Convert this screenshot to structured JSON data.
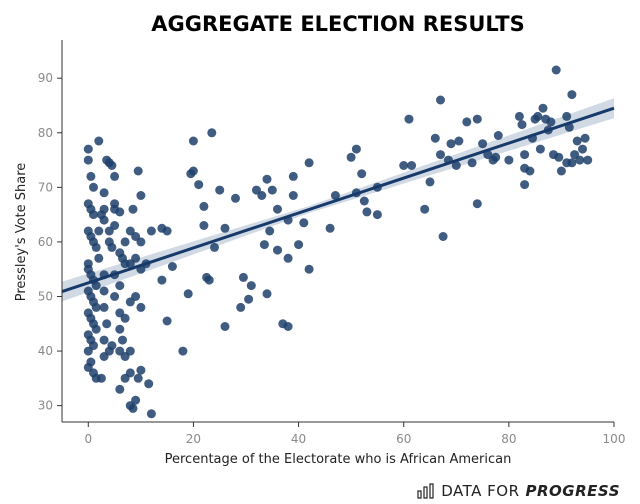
{
  "brand": {
    "part1": "DATA FOR",
    "part2": "PROGRESS",
    "icon": "bar-chart-icon"
  },
  "chart_data": {
    "type": "scatter",
    "title": "AGGREGATE ELECTION RESULTS",
    "xlabel": "Percentage of the Electorate who is African American",
    "ylabel": "Pressley's Vote Share",
    "xlim": [
      -5,
      100
    ],
    "ylim": [
      27,
      97
    ],
    "xticks": [
      0,
      20,
      40,
      60,
      80,
      100
    ],
    "yticks": [
      30,
      40,
      50,
      60,
      70,
      80,
      90
    ],
    "grid": false,
    "colors": {
      "points": "#1f3f6b",
      "trend": "#173a6b",
      "band": "#c9d3df"
    },
    "trend": {
      "slope": 0.32,
      "intercept": 52.5,
      "ci_half_width": 1.3
    },
    "points": [
      [
        0,
        77
      ],
      [
        0,
        75
      ],
      [
        0.5,
        72
      ],
      [
        1,
        70
      ],
      [
        2,
        78.5
      ],
      [
        0,
        67
      ],
      [
        0.5,
        66
      ],
      [
        1,
        65
      ],
      [
        0,
        62
      ],
      [
        0.5,
        61
      ],
      [
        1,
        60
      ],
      [
        2,
        62
      ],
      [
        2.5,
        65
      ],
      [
        3,
        64
      ],
      [
        3,
        66
      ],
      [
        1.5,
        59
      ],
      [
        2,
        57
      ],
      [
        0,
        56
      ],
      [
        0,
        55
      ],
      [
        0.5,
        54
      ],
      [
        1,
        53
      ],
      [
        1.5,
        52
      ],
      [
        0,
        51
      ],
      [
        0.5,
        50
      ],
      [
        1,
        49
      ],
      [
        1.5,
        48
      ],
      [
        0,
        47
      ],
      [
        0.5,
        46
      ],
      [
        1,
        45
      ],
      [
        1.5,
        44
      ],
      [
        0,
        43
      ],
      [
        0.5,
        42
      ],
      [
        1,
        41
      ],
      [
        0,
        40
      ],
      [
        0.5,
        38
      ],
      [
        0,
        37
      ],
      [
        1,
        36
      ],
      [
        1.5,
        35
      ],
      [
        2.5,
        35
      ],
      [
        3,
        54
      ],
      [
        3,
        51
      ],
      [
        3,
        48
      ],
      [
        3.5,
        45
      ],
      [
        3,
        42
      ],
      [
        4,
        40
      ],
      [
        4.5,
        41
      ],
      [
        3,
        39
      ],
      [
        3.5,
        75
      ],
      [
        4,
        74.5
      ],
      [
        4.5,
        74
      ],
      [
        3,
        69
      ],
      [
        5,
        72
      ],
      [
        4,
        62
      ],
      [
        4,
        60
      ],
      [
        4.5,
        59
      ],
      [
        5,
        67
      ],
      [
        5,
        66
      ],
      [
        5,
        63
      ],
      [
        6,
        65.5
      ],
      [
        6,
        58
      ],
      [
        6.5,
        57
      ],
      [
        7,
        56
      ],
      [
        7,
        60
      ],
      [
        5,
        54
      ],
      [
        6,
        52
      ],
      [
        5,
        50
      ],
      [
        6,
        47
      ],
      [
        7,
        46
      ],
      [
        6,
        44
      ],
      [
        6.5,
        42
      ],
      [
        6,
        40
      ],
      [
        7,
        39
      ],
      [
        6,
        33
      ],
      [
        7,
        35
      ],
      [
        8,
        36
      ],
      [
        8,
        40
      ],
      [
        8,
        30
      ],
      [
        8.5,
        29.5
      ],
      [
        9,
        31
      ],
      [
        9.5,
        35
      ],
      [
        10,
        36.5
      ],
      [
        8,
        49
      ],
      [
        9,
        50
      ],
      [
        10,
        48
      ],
      [
        8,
        56
      ],
      [
        9,
        57
      ],
      [
        10,
        55
      ],
      [
        8,
        62
      ],
      [
        9,
        61
      ],
      [
        10,
        60
      ],
      [
        8.5,
        66
      ],
      [
        9.5,
        73
      ],
      [
        10,
        68.5
      ],
      [
        11,
        56
      ],
      [
        11.5,
        34
      ],
      [
        12,
        28.5
      ],
      [
        12,
        62
      ],
      [
        14,
        62.5
      ],
      [
        15,
        62
      ],
      [
        14,
        53
      ],
      [
        15,
        45.5
      ],
      [
        16,
        55.5
      ],
      [
        18,
        40
      ],
      [
        19,
        50.5
      ],
      [
        19.5,
        72.5
      ],
      [
        20,
        78.5
      ],
      [
        20,
        73
      ],
      [
        21,
        70.5
      ],
      [
        22,
        66.5
      ],
      [
        22,
        63
      ],
      [
        22.5,
        53.5
      ],
      [
        23,
        53
      ],
      [
        23.5,
        80
      ],
      [
        24,
        59
      ],
      [
        25,
        69.5
      ],
      [
        26,
        62.5
      ],
      [
        26,
        44.5
      ],
      [
        28,
        68
      ],
      [
        29,
        48
      ],
      [
        29.5,
        53.5
      ],
      [
        30.5,
        49.5
      ],
      [
        31,
        52
      ],
      [
        32,
        69.5
      ],
      [
        33,
        68.5
      ],
      [
        33.5,
        59.5
      ],
      [
        34,
        71.5
      ],
      [
        34,
        50.5
      ],
      [
        34.5,
        62
      ],
      [
        35,
        69.5
      ],
      [
        36,
        58.5
      ],
      [
        36,
        66
      ],
      [
        37,
        45
      ],
      [
        38,
        57
      ],
      [
        38,
        64
      ],
      [
        38,
        44.5
      ],
      [
        39,
        72
      ],
      [
        39,
        68.5
      ],
      [
        40,
        59.5
      ],
      [
        41,
        63.5
      ],
      [
        42,
        74.5
      ],
      [
        42,
        55
      ],
      [
        46,
        62.5
      ],
      [
        47,
        68.5
      ],
      [
        50,
        75.5
      ],
      [
        51,
        77
      ],
      [
        51,
        69
      ],
      [
        52,
        72.5
      ],
      [
        52.5,
        67.5
      ],
      [
        53,
        65.5
      ],
      [
        55,
        70
      ],
      [
        55,
        65
      ],
      [
        60,
        74
      ],
      [
        61,
        82.5
      ],
      [
        61.5,
        74
      ],
      [
        64,
        66
      ],
      [
        65,
        71
      ],
      [
        66,
        79
      ],
      [
        67,
        86
      ],
      [
        67,
        76
      ],
      [
        67.5,
        61
      ],
      [
        68.5,
        75
      ],
      [
        69,
        78
      ],
      [
        70,
        74
      ],
      [
        70.5,
        78.5
      ],
      [
        72,
        82
      ],
      [
        73,
        74.5
      ],
      [
        74,
        82.5
      ],
      [
        74,
        67
      ],
      [
        75,
        78
      ],
      [
        76,
        76
      ],
      [
        77,
        75
      ],
      [
        77.5,
        75.5
      ],
      [
        78,
        79.5
      ],
      [
        80,
        75
      ],
      [
        82,
        83
      ],
      [
        82.5,
        81.5
      ],
      [
        83,
        76
      ],
      [
        83,
        73.5
      ],
      [
        83,
        70.5
      ],
      [
        84,
        73
      ],
      [
        84.5,
        79
      ],
      [
        85,
        82.5
      ],
      [
        85.5,
        83
      ],
      [
        86,
        77
      ],
      [
        86.5,
        84.5
      ],
      [
        87,
        82.5
      ],
      [
        87.5,
        80.5
      ],
      [
        88,
        82
      ],
      [
        88.5,
        76
      ],
      [
        89,
        91.5
      ],
      [
        89.5,
        75.5
      ],
      [
        90,
        73
      ],
      [
        91,
        74.5
      ],
      [
        91,
        83
      ],
      [
        91.5,
        81
      ],
      [
        92,
        87
      ],
      [
        92,
        74.5
      ],
      [
        92.5,
        76
      ],
      [
        93,
        78.5
      ],
      [
        93.5,
        75
      ],
      [
        94,
        77
      ],
      [
        94.5,
        79
      ],
      [
        95,
        75
      ]
    ]
  }
}
